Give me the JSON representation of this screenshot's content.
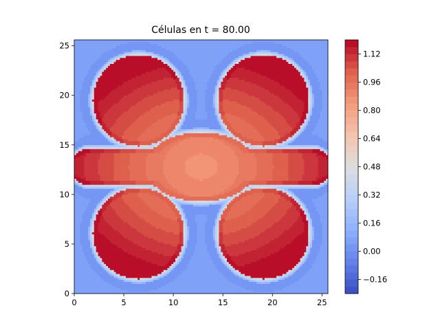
{
  "chart_data": {
    "type": "heatmap",
    "title": "Células en t = 80.00",
    "xlabel": "",
    "ylabel": "",
    "x_range": [
      0,
      25.6
    ],
    "y_range": [
      0,
      25.6
    ],
    "x_ticks": [
      0,
      5,
      10,
      15,
      20,
      25
    ],
    "y_ticks": [
      0,
      5,
      10,
      15,
      20,
      25
    ],
    "colormap": "coolwarm",
    "colorbar": {
      "range": [
        -0.24,
        1.2
      ],
      "ticks": [
        -0.16,
        0.0,
        0.16,
        0.32,
        0.48,
        0.64,
        0.8,
        0.96,
        1.12
      ],
      "tick_labels": [
        "−0.16",
        "0.00",
        "0.16",
        "0.32",
        "0.48",
        "0.64",
        "0.80",
        "0.96",
        "1.12"
      ],
      "levels": 36
    },
    "field": {
      "background_value": 0.06,
      "depleted_value": 0.0,
      "center": [
        12.8,
        12.8
      ],
      "core_value": 0.86,
      "rim_value": 1.16,
      "shape": "four-lobed cell colony with two horizontal arms",
      "lobes": [
        {
          "x": 6.5,
          "y": 19.5,
          "radius": 4.6
        },
        {
          "x": 19.1,
          "y": 19.5,
          "radius": 4.6
        },
        {
          "x": 6.5,
          "y": 6.1,
          "radius": 4.6
        },
        {
          "x": 19.1,
          "y": 6.1,
          "radius": 4.6
        }
      ],
      "arms": [
        {
          "x": 1.0,
          "y": 12.8,
          "half_height": 1.8
        },
        {
          "x": 24.6,
          "y": 12.8,
          "half_height": 1.8
        }
      ]
    }
  }
}
